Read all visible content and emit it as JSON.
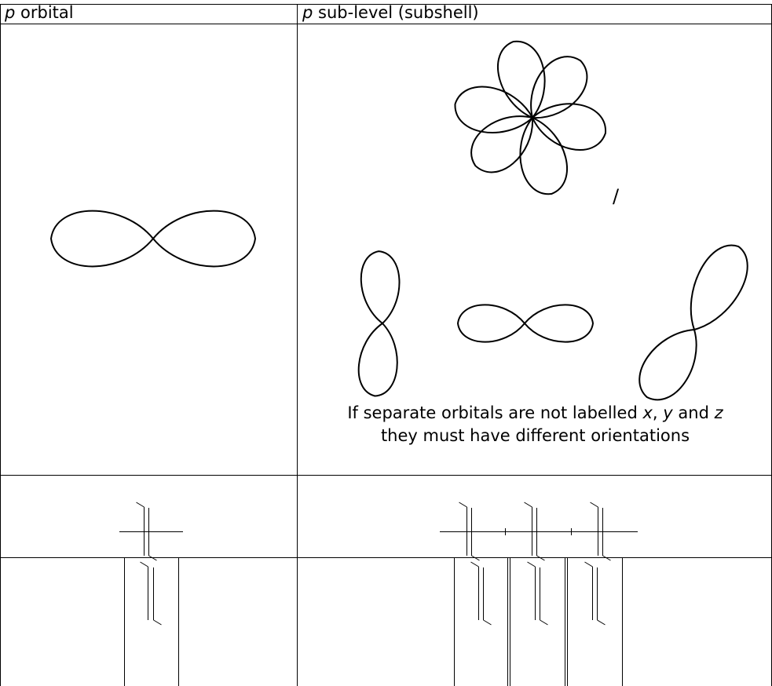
{
  "table": {
    "header": [
      {
        "italic": "p",
        "text": "orbital"
      },
      {
        "italic": "p",
        "text": "sub-level (subshell)"
      }
    ],
    "separator": "/",
    "note": {
      "line1": [
        "If separate orbitals are not labelled",
        "x",
        ",",
        "y",
        "and",
        "z"
      ],
      "line2": "they must have different orientations"
    }
  }
}
